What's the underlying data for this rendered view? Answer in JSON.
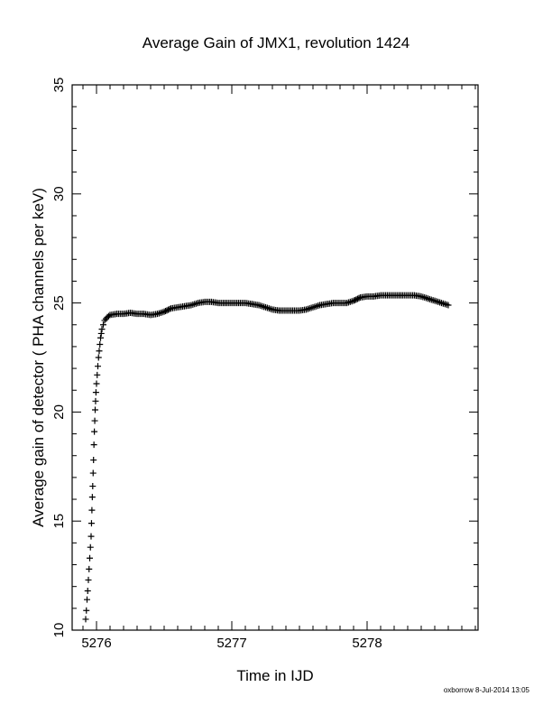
{
  "chart_data": {
    "type": "scatter",
    "title": "Average Gain of JMX1, revolution 1424",
    "xlabel": "Time in IJD",
    "ylabel": "Average gain of detector ( PHA channels per keV)",
    "xlim": [
      5275.82,
      5278.82
    ],
    "ylim": [
      10,
      35
    ],
    "xticks": [
      5276,
      5277,
      5278
    ],
    "yticks": [
      10,
      15,
      20,
      25,
      30,
      35
    ],
    "grid": false,
    "marker": "+",
    "x": [
      5275.92,
      5275.925,
      5275.93,
      5275.935,
      5275.94,
      5275.945,
      5275.95,
      5275.955,
      5275.96,
      5275.963,
      5275.966,
      5275.969,
      5275.972,
      5275.975,
      5275.978,
      5275.981,
      5275.984,
      5275.987,
      5275.99,
      5275.993,
      5275.996,
      5276.0,
      5276.005,
      5276.01,
      5276.015,
      5276.02,
      5276.025,
      5276.03,
      5276.035,
      5276.04,
      5276.05,
      5276.06,
      5276.08,
      5276.1,
      5276.15,
      5276.2,
      5276.25,
      5276.3,
      5276.35,
      5276.4,
      5276.45,
      5276.5,
      5276.55,
      5276.6,
      5276.65,
      5276.7,
      5276.75,
      5276.8,
      5276.85,
      5276.9,
      5276.95,
      5277.0,
      5277.05,
      5277.1,
      5277.15,
      5277.2,
      5277.25,
      5277.3,
      5277.35,
      5277.4,
      5277.45,
      5277.5,
      5277.55,
      5277.6,
      5277.65,
      5277.7,
      5277.75,
      5277.8,
      5277.85,
      5277.9,
      5277.95,
      5278.0,
      5278.05,
      5278.1,
      5278.15,
      5278.2,
      5278.25,
      5278.3,
      5278.35,
      5278.4,
      5278.45,
      5278.5,
      5278.55,
      5278.6
    ],
    "y": [
      10.5,
      10.9,
      11.4,
      11.8,
      12.3,
      12.8,
      13.3,
      13.8,
      14.3,
      14.9,
      15.5,
      16.1,
      16.6,
      17.2,
      17.8,
      18.5,
      19.1,
      19.6,
      20.1,
      20.5,
      20.9,
      21.3,
      21.7,
      22.1,
      22.5,
      22.8,
      23.1,
      23.4,
      23.6,
      23.8,
      24.0,
      24.2,
      24.35,
      24.45,
      24.5,
      24.5,
      24.55,
      24.5,
      24.5,
      24.45,
      24.5,
      24.6,
      24.75,
      24.8,
      24.85,
      24.9,
      25.0,
      25.05,
      25.05,
      25.0,
      25.0,
      25.0,
      25.0,
      25.0,
      24.95,
      24.9,
      24.8,
      24.7,
      24.65,
      24.65,
      24.65,
      24.65,
      24.7,
      24.8,
      24.9,
      24.95,
      25.0,
      25.0,
      25.0,
      25.1,
      25.25,
      25.3,
      25.3,
      25.35,
      25.35,
      25.35,
      25.35,
      25.35,
      25.35,
      25.3,
      25.2,
      25.1,
      25.0,
      24.9
    ]
  },
  "footer": {
    "stamp": "oxborrow  8-Jul-2014 13:05"
  }
}
